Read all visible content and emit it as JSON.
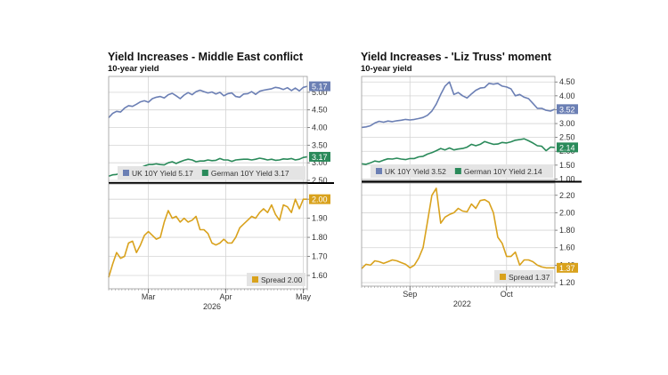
{
  "colors": {
    "uk": "#6b7fb4",
    "german": "#2a8a5a",
    "spread": "#d9a21d",
    "grid": "#d4d4d4",
    "frame": "#9a9a9a"
  },
  "chart_data": [
    {
      "type": "line",
      "title": "Yield Increases - Middle East conflict",
      "subtitle": "10-year yield",
      "x_tick_labels": [
        "Mar",
        "Apr",
        "May"
      ],
      "x_period_label": "2026",
      "top": {
        "ylim": [
          2.45,
          5.45
        ],
        "yticks": [
          "2.50",
          "3.00",
          "3.50",
          "4.00",
          "4.50",
          "5.00"
        ],
        "series": [
          {
            "name": "UK 10Y Yield",
            "last_label": "5.17",
            "legend": "UK 10Y Yield 5.17",
            "values": [
              4.28,
              4.4,
              4.46,
              4.44,
              4.55,
              4.62,
              4.6,
              4.66,
              4.73,
              4.76,
              4.72,
              4.82,
              4.86,
              4.88,
              4.84,
              4.93,
              4.97,
              4.9,
              4.82,
              4.92,
              4.99,
              4.93,
              5.02,
              5.06,
              5.02,
              4.98,
              5.01,
              4.95,
              5.0,
              4.9,
              4.96,
              4.98,
              4.88,
              4.86,
              4.95,
              4.96,
              5.02,
              4.94,
              5.03,
              5.06,
              5.08,
              5.1,
              5.14,
              5.12,
              5.08,
              5.13,
              5.05,
              5.12,
              5.04,
              5.14,
              5.17
            ]
          },
          {
            "name": "German 10Y Yield",
            "last_label": "3.17",
            "legend": "German 10Y Yield 3.17",
            "values": [
              2.62,
              2.66,
              2.67,
              2.71,
              2.74,
              2.76,
              2.76,
              2.82,
              2.86,
              2.91,
              2.95,
              2.95,
              2.97,
              2.95,
              2.94,
              3.0,
              3.03,
              2.98,
              3.03,
              3.07,
              3.1,
              3.08,
              3.03,
              3.05,
              3.05,
              3.08,
              3.06,
              3.07,
              3.12,
              3.08,
              3.08,
              3.04,
              3.08,
              3.09,
              3.1,
              3.1,
              3.08,
              3.1,
              3.13,
              3.11,
              3.08,
              3.1,
              3.07,
              3.08,
              3.11,
              3.1,
              3.12,
              3.08,
              3.1,
              3.15,
              3.17
            ]
          }
        ]
      },
      "bottom": {
        "ylim": [
          1.53,
          2.08
        ],
        "yticks": [
          "1.60",
          "1.70",
          "1.80",
          "1.90",
          "2.00"
        ],
        "series": [
          {
            "name": "Spread",
            "last_label": "2.00",
            "legend": "Spread 2.00",
            "values": [
              1.59,
              1.66,
              1.72,
              1.69,
              1.7,
              1.77,
              1.78,
              1.72,
              1.76,
              1.81,
              1.83,
              1.81,
              1.79,
              1.8,
              1.88,
              1.94,
              1.9,
              1.91,
              1.88,
              1.9,
              1.88,
              1.89,
              1.91,
              1.84,
              1.84,
              1.82,
              1.77,
              1.76,
              1.77,
              1.79,
              1.77,
              1.77,
              1.8,
              1.85,
              1.87,
              1.89,
              1.91,
              1.9,
              1.93,
              1.95,
              1.93,
              1.97,
              1.92,
              1.89,
              1.97,
              1.96,
              1.93,
              2.0,
              1.95,
              2.0,
              2.0
            ]
          }
        ]
      }
    },
    {
      "type": "line",
      "title": "Yield Increases - 'Liz Truss' moment",
      "subtitle": "10-year yield",
      "x_tick_labels": [
        "Sep",
        "Oct"
      ],
      "x_period_label": "2022",
      "top": {
        "ylim": [
          0.95,
          4.7
        ],
        "yticks": [
          "1.00",
          "1.50",
          "2.00",
          "2.50",
          "3.00",
          "3.50",
          "4.00",
          "4.50"
        ],
        "series": [
          {
            "name": "UK 10Y Yield",
            "last_label": "3.52",
            "legend": "UK 10Y Yield 3.52",
            "values": [
              2.86,
              2.88,
              2.92,
              3.02,
              3.08,
              3.05,
              3.09,
              3.07,
              3.1,
              3.12,
              3.15,
              3.13,
              3.15,
              3.18,
              3.22,
              3.3,
              3.45,
              3.7,
              4.05,
              4.35,
              4.5,
              4.05,
              4.12,
              4.0,
              3.92,
              4.07,
              4.2,
              4.28,
              4.3,
              4.45,
              4.42,
              4.45,
              4.35,
              4.32,
              4.25,
              4.0,
              4.05,
              3.95,
              3.9,
              3.73,
              3.55,
              3.55,
              3.48,
              3.45,
              3.52
            ]
          },
          {
            "name": "German 10Y Yield",
            "last_label": "2.14",
            "legend": "German 10Y Yield 2.14",
            "values": [
              1.55,
              1.53,
              1.58,
              1.65,
              1.62,
              1.68,
              1.73,
              1.72,
              1.75,
              1.72,
              1.7,
              1.74,
              1.74,
              1.8,
              1.82,
              1.9,
              1.95,
              2.02,
              2.1,
              2.05,
              2.12,
              2.05,
              2.08,
              2.1,
              2.15,
              2.25,
              2.2,
              2.25,
              2.35,
              2.3,
              2.25,
              2.26,
              2.32,
              2.3,
              2.34,
              2.4,
              2.42,
              2.45,
              2.38,
              2.3,
              2.2,
              2.18,
              2.02,
              2.15,
              2.14
            ]
          }
        ]
      },
      "bottom": {
        "ylim": [
          1.16,
          2.34
        ],
        "yticks": [
          "1.20",
          "1.40",
          "1.60",
          "1.80",
          "2.00",
          "2.20"
        ],
        "series": [
          {
            "name": "Spread",
            "last_label": "1.37",
            "legend": "Spread 1.37",
            "values": [
              1.36,
              1.41,
              1.4,
              1.45,
              1.44,
              1.42,
              1.44,
              1.46,
              1.45,
              1.43,
              1.41,
              1.37,
              1.4,
              1.48,
              1.6,
              1.9,
              2.2,
              2.28,
              1.88,
              1.95,
              1.98,
              2.0,
              2.05,
              2.02,
              2.01,
              2.1,
              2.05,
              2.14,
              2.15,
              2.12,
              2.0,
              1.72,
              1.65,
              1.5,
              1.5,
              1.55,
              1.4,
              1.46,
              1.46,
              1.44,
              1.4,
              1.38,
              1.37,
              1.37,
              1.37
            ]
          }
        ]
      }
    }
  ]
}
